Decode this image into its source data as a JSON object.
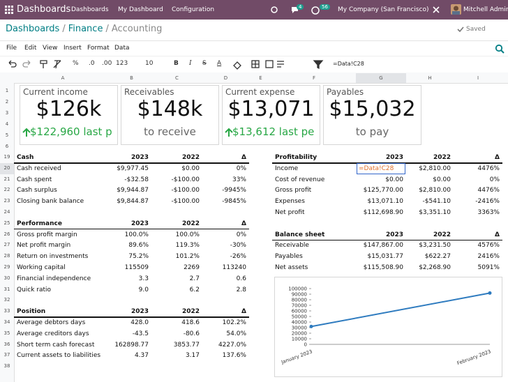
{
  "navbar": {
    "app": "Dashboards",
    "menu": [
      "Dashboards",
      "My Dashboard",
      "Configuration"
    ],
    "messages_badge": "4",
    "activity_badge": "56",
    "company": "My Company (San Francisco)",
    "user": "Mitchell Admin"
  },
  "breadcrumb": {
    "items": [
      "Dashboards",
      "Finance",
      "Accounting"
    ],
    "separator": "/"
  },
  "status": "Saved",
  "menubar": [
    "File",
    "Edit",
    "View",
    "Insert",
    "Format",
    "Data"
  ],
  "toolbar": {
    "percent": "%",
    "decimals_less": ".0",
    "decimals_more": ".00",
    "format": "123",
    "font_size": "10",
    "bold": "B",
    "italic": "I",
    "strike": "S",
    "text_color": "A",
    "formula": "=Data!C28"
  },
  "columns": [
    "A",
    "B",
    "C",
    "D",
    "E",
    "F",
    "G",
    "H",
    "I"
  ],
  "rows": [
    "1",
    "2",
    "3",
    "4",
    "5",
    "6",
    "19",
    "20",
    "21",
    "22",
    "23",
    "24",
    "25",
    "26",
    "27",
    "28",
    "29",
    "30",
    "31",
    "32",
    "33",
    "34",
    "35",
    "36",
    "37",
    "38"
  ],
  "scorecards": [
    {
      "title": "Current income",
      "value": "$126k",
      "note": "$122,960 last p",
      "trend": "up"
    },
    {
      "title": "Receivables",
      "value": "$148k",
      "note": "to receive"
    },
    {
      "title": "Current expense",
      "value": "$13,071",
      "note": "$13,612 last pe",
      "trend": "up"
    },
    {
      "title": "Payables",
      "value": "$15,032",
      "note": "to pay"
    }
  ],
  "left_tables": [
    {
      "header": [
        "Cash",
        "2023",
        "2022",
        "Δ"
      ],
      "rows": [
        [
          "Cash received",
          "$9,977.45",
          "$0.00",
          "0%"
        ],
        [
          "Cash spent",
          "-$32.58",
          "-$100.00",
          "33%"
        ],
        [
          "Cash surplus",
          "$9,944.87",
          "-$100.00",
          "-9945%"
        ],
        [
          "Closing bank balance",
          "$9,844.87",
          "-$100.00",
          "-9845%"
        ]
      ]
    },
    {
      "header": [
        "Performance",
        "2023",
        "2022",
        "Δ"
      ],
      "rows": [
        [
          "Gross profit margin",
          "100.0%",
          "100.0%",
          "0%"
        ],
        [
          "Net profit margin",
          "89.6%",
          "119.3%",
          "-30%"
        ],
        [
          "Return on investments",
          "75.2%",
          "101.2%",
          "-26%"
        ],
        [
          "Working capital",
          "115509",
          "2269",
          "113240"
        ],
        [
          "Financial independence",
          "3.3",
          "2.7",
          "0.6"
        ],
        [
          "Quick ratio",
          "9.0",
          "6.2",
          "2.8"
        ]
      ]
    },
    {
      "header": [
        "Position",
        "2023",
        "2022",
        "Δ"
      ],
      "rows": [
        [
          "Average debtors days",
          "428.0",
          "418.6",
          "102.2%"
        ],
        [
          "Average creditors days",
          "-43.5",
          "-80.6",
          "54.0%"
        ],
        [
          "Short term cash forecast",
          "162898.77",
          "3853.77",
          "4227.0%"
        ],
        [
          "Current assets to liabilities",
          "4.37",
          "3.17",
          "137.6%"
        ]
      ]
    }
  ],
  "right_tables": [
    {
      "header": [
        "Profitability",
        "2023",
        "2022",
        "Δ"
      ],
      "rows": [
        [
          "Income",
          "=Data!C28",
          "$2,810.00",
          "4476%"
        ],
        [
          "Cost of revenue",
          "$0.00",
          "$0.00",
          "0%"
        ],
        [
          "Gross profit",
          "$125,770.00",
          "$2,810.00",
          "4476%"
        ],
        [
          "Expenses",
          "$13,071.10",
          "-$541.10",
          "-2416%"
        ],
        [
          "Net profit",
          "$112,698.90",
          "$3,351.10",
          "3363%"
        ]
      ]
    },
    {
      "header": [
        "Balance sheet",
        "2023",
        "2022",
        "Δ"
      ],
      "rows": [
        [
          "Receivable",
          "$147,867.00",
          "$3,231.50",
          "4576%"
        ],
        [
          "Payables",
          "$15,031.77",
          "$622.27",
          "2416%"
        ],
        [
          "Net assets",
          "$115,508.90",
          "$2,268.90",
          "5091%"
        ]
      ]
    }
  ],
  "chart": {
    "type": "line",
    "x": [
      "January 2023",
      "February 2023"
    ],
    "values": [
      32000,
      92000
    ],
    "color": "#2e7bbf",
    "ylim": [
      0,
      100000
    ],
    "yticks": [
      0,
      10000,
      20000,
      30000,
      40000,
      50000,
      60000,
      70000,
      80000,
      90000,
      100000
    ]
  }
}
